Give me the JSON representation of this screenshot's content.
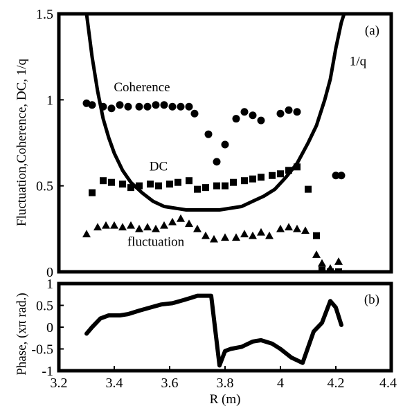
{
  "chart_data": [
    {
      "panel_label": "(a)",
      "type": "scatter",
      "ylabel": "Fluctuation,Coherence, DC, 1/q",
      "xlim": [
        3.2,
        4.4
      ],
      "ylim": [
        0,
        1.5
      ],
      "x_ticks": [],
      "y_ticks": [
        {
          "value": 0,
          "label": "0"
        },
        {
          "value": 0.5,
          "label": "0.5"
        },
        {
          "value": 1,
          "label": "1"
        },
        {
          "value": 1.5,
          "label": "1.5"
        }
      ],
      "grid": false,
      "annotations": [
        {
          "text": "Coherence",
          "x": 3.5,
          "y": 1.05,
          "series": "Coherence"
        },
        {
          "text": "DC",
          "x": 3.56,
          "y": 0.59,
          "series": "DC"
        },
        {
          "text": "fluctuation",
          "x": 3.55,
          "y": 0.15,
          "series": "fluctuation"
        },
        {
          "text": "1/q",
          "x": 4.28,
          "y": 1.2,
          "series": "1/q"
        }
      ],
      "series": [
        {
          "name": "Coherence",
          "marker": "circle",
          "x": [
            3.3,
            3.32,
            3.36,
            3.39,
            3.42,
            3.45,
            3.49,
            3.52,
            3.55,
            3.58,
            3.61,
            3.64,
            3.67,
            3.69,
            3.74,
            3.77,
            3.8,
            3.84,
            3.87,
            3.9,
            3.93,
            4.0,
            4.03,
            4.06,
            4.2,
            4.22
          ],
          "y": [
            0.98,
            0.97,
            0.96,
            0.95,
            0.97,
            0.96,
            0.96,
            0.96,
            0.97,
            0.97,
            0.96,
            0.96,
            0.96,
            0.92,
            0.8,
            0.64,
            0.74,
            0.89,
            0.93,
            0.91,
            0.88,
            0.92,
            0.94,
            0.93,
            0.56,
            0.56
          ]
        },
        {
          "name": "DC",
          "marker": "square",
          "x": [
            3.32,
            3.36,
            3.39,
            3.43,
            3.46,
            3.49,
            3.53,
            3.56,
            3.6,
            3.63,
            3.67,
            3.7,
            3.73,
            3.77,
            3.8,
            3.83,
            3.87,
            3.9,
            3.93,
            3.97,
            4.0,
            4.03,
            4.06,
            4.1,
            4.13,
            4.15,
            4.18,
            4.21
          ],
          "y": [
            0.46,
            0.53,
            0.52,
            0.51,
            0.49,
            0.5,
            0.51,
            0.5,
            0.51,
            0.52,
            0.53,
            0.48,
            0.49,
            0.5,
            0.5,
            0.52,
            0.53,
            0.54,
            0.55,
            0.56,
            0.57,
            0.59,
            0.61,
            0.48,
            0.21,
            0.01,
            0.0,
            0.0
          ]
        },
        {
          "name": "fluctuation",
          "marker": "triangle",
          "x": [
            3.3,
            3.34,
            3.37,
            3.4,
            3.43,
            3.46,
            3.49,
            3.52,
            3.55,
            3.58,
            3.61,
            3.64,
            3.67,
            3.7,
            3.73,
            3.76,
            3.8,
            3.84,
            3.87,
            3.9,
            3.93,
            3.96,
            4.0,
            4.03,
            4.06,
            4.09,
            4.13,
            4.15,
            4.18,
            4.21
          ],
          "y": [
            0.22,
            0.26,
            0.27,
            0.27,
            0.26,
            0.27,
            0.25,
            0.26,
            0.25,
            0.27,
            0.29,
            0.31,
            0.28,
            0.25,
            0.21,
            0.19,
            0.2,
            0.2,
            0.22,
            0.21,
            0.23,
            0.21,
            0.25,
            0.26,
            0.25,
            0.24,
            0.1,
            0.05,
            0.02,
            0.06
          ]
        },
        {
          "name": "1/q",
          "type": "line",
          "x": [
            3.3,
            3.32,
            3.34,
            3.36,
            3.38,
            3.4,
            3.43,
            3.46,
            3.5,
            3.54,
            3.58,
            3.62,
            3.66,
            3.7,
            3.74,
            3.78,
            3.82,
            3.86,
            3.9,
            3.94,
            3.98,
            4.02,
            4.06,
            4.1,
            4.13,
            4.16,
            4.18,
            4.2,
            4.22,
            4.23
          ],
          "y": [
            1.5,
            1.25,
            1.05,
            0.89,
            0.78,
            0.69,
            0.59,
            0.52,
            0.46,
            0.41,
            0.38,
            0.37,
            0.36,
            0.36,
            0.36,
            0.36,
            0.37,
            0.38,
            0.41,
            0.44,
            0.48,
            0.55,
            0.63,
            0.75,
            0.85,
            1.0,
            1.12,
            1.3,
            1.45,
            1.5
          ]
        }
      ]
    },
    {
      "panel_label": "(b)",
      "type": "line",
      "xlabel": "R (m)",
      "ylabel": "Phase, (xπ rad.)",
      "xlim": [
        3.2,
        4.4
      ],
      "ylim": [
        -1,
        1
      ],
      "x_ticks": [
        {
          "value": 3.2,
          "label": "3.2"
        },
        {
          "value": 3.4,
          "label": "3.4"
        },
        {
          "value": 3.6,
          "label": "3.6"
        },
        {
          "value": 3.8,
          "label": "3.8"
        },
        {
          "value": 4.0,
          "label": "4"
        },
        {
          "value": 4.2,
          "label": "4.2"
        },
        {
          "value": 4.4,
          "label": "4.4"
        }
      ],
      "y_ticks": [
        {
          "value": -1,
          "label": "-1"
        },
        {
          "value": -0.5,
          "label": "-0.5"
        },
        {
          "value": 0,
          "label": "0"
        },
        {
          "value": 0.5,
          "label": "0.5"
        },
        {
          "value": 1,
          "label": "1"
        }
      ],
      "grid": false,
      "series": [
        {
          "name": "Phase",
          "x": [
            3.3,
            3.32,
            3.35,
            3.38,
            3.42,
            3.45,
            3.49,
            3.53,
            3.57,
            3.61,
            3.65,
            3.68,
            3.7,
            3.75,
            3.78,
            3.8,
            3.82,
            3.86,
            3.9,
            3.93,
            3.97,
            4.0,
            4.04,
            4.08,
            4.12,
            4.15,
            4.18,
            4.2,
            4.22
          ],
          "y": [
            -0.15,
            0.0,
            0.2,
            0.27,
            0.27,
            0.3,
            0.38,
            0.45,
            0.52,
            0.55,
            0.62,
            0.68,
            0.72,
            0.72,
            -0.88,
            -0.55,
            -0.5,
            -0.45,
            -0.33,
            -0.3,
            -0.38,
            -0.5,
            -0.7,
            -0.82,
            -0.1,
            0.1,
            0.6,
            0.45,
            0.05
          ]
        }
      ]
    }
  ]
}
